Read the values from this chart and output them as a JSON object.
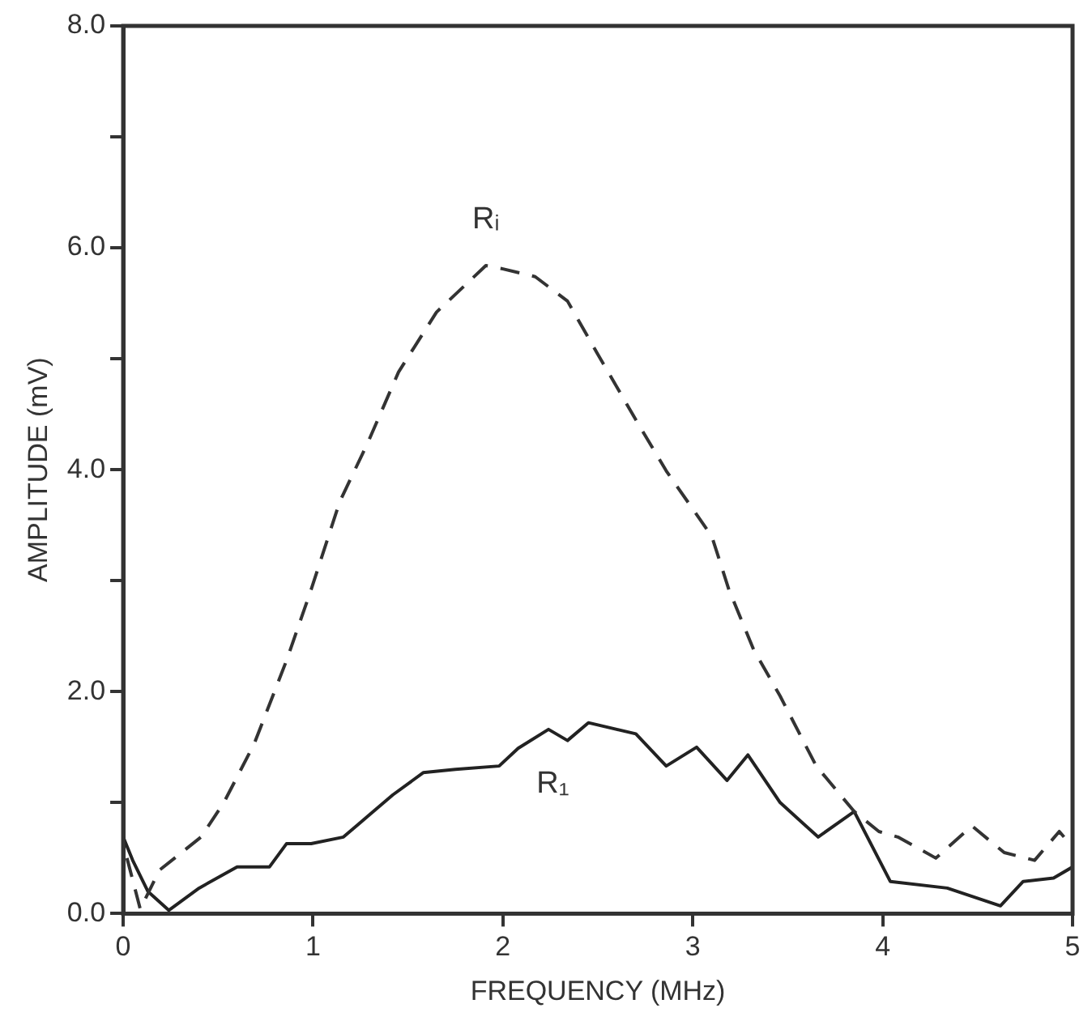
{
  "chart_data": {
    "type": "line",
    "xlabel": "FREQUENCY (MHz)",
    "ylabel": "AMPLITUDE (mV)",
    "xlim": [
      0,
      5
    ],
    "xticks": [
      0,
      1,
      2,
      3,
      4,
      5
    ],
    "ylim": [
      0,
      8
    ],
    "yticks": [
      {
        "value": 0,
        "label": "0.0"
      },
      {
        "value": 1,
        "label": null
      },
      {
        "value": 2,
        "label": "2.0"
      },
      {
        "value": 3,
        "label": null
      },
      {
        "value": 4,
        "label": "4.0"
      },
      {
        "value": 5,
        "label": null
      },
      {
        "value": 6,
        "label": "6.0"
      },
      {
        "value": 7,
        "label": null
      },
      {
        "value": 8,
        "label": "8.0"
      }
    ],
    "grid": false,
    "legend": false,
    "marker": "none",
    "series": [
      {
        "name": "Rᵢ",
        "color": "#333333",
        "line_style": "dashed",
        "x": [
          0.02,
          0.09,
          0.19,
          0.41,
          0.53,
          0.69,
          0.86,
          0.99,
          1.14,
          1.29,
          1.45,
          1.65,
          1.91,
          2.0,
          2.17,
          2.34,
          2.5,
          2.7,
          2.86,
          3.1,
          3.19,
          3.32,
          3.46,
          3.65,
          3.85,
          3.98,
          4.08,
          4.28,
          4.47,
          4.64,
          4.8,
          4.93,
          5.0
        ],
        "values": [
          0.5,
          0.04,
          0.39,
          0.69,
          1.0,
          1.53,
          2.28,
          2.92,
          3.71,
          4.25,
          4.88,
          5.42,
          5.84,
          5.81,
          5.74,
          5.52,
          5.04,
          4.45,
          3.99,
          3.4,
          2.92,
          2.38,
          1.96,
          1.33,
          0.92,
          0.74,
          0.69,
          0.5,
          0.79,
          0.55,
          0.48,
          0.74,
          0.6
        ]
      },
      {
        "name": "R₁",
        "color": "#222222",
        "line_style": "solid",
        "x": [
          0.0,
          0.05,
          0.13,
          0.24,
          0.4,
          0.6,
          0.77,
          0.86,
          0.99,
          1.16,
          1.29,
          1.42,
          1.58,
          1.75,
          1.98,
          2.08,
          2.24,
          2.34,
          2.45,
          2.7,
          2.86,
          3.02,
          3.18,
          3.29,
          3.46,
          3.66,
          3.85,
          4.04,
          4.34,
          4.62,
          4.74,
          4.9,
          5.0
        ],
        "values": [
          0.69,
          0.48,
          0.2,
          0.03,
          0.23,
          0.42,
          0.42,
          0.63,
          0.63,
          0.69,
          0.88,
          1.07,
          1.27,
          1.3,
          1.33,
          1.49,
          1.66,
          1.56,
          1.72,
          1.62,
          1.33,
          1.5,
          1.2,
          1.43,
          1.0,
          0.69,
          0.92,
          0.29,
          0.23,
          0.07,
          0.29,
          0.32,
          0.42
        ]
      }
    ]
  }
}
